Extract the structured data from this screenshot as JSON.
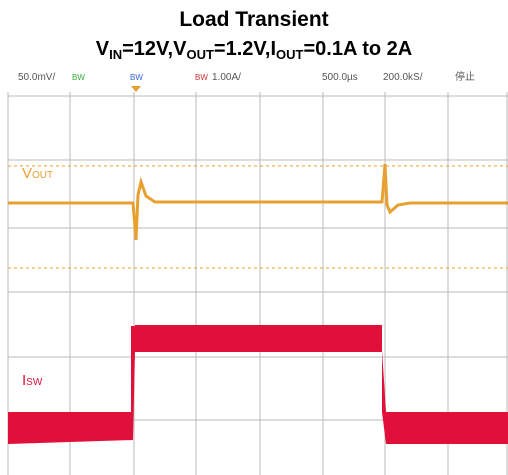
{
  "header": {
    "title": "Load Transient",
    "subtitle": [
      "V",
      "IN",
      "=12V,V",
      "OUT",
      "=1.2V,I",
      "OUT",
      "=0.1A to 2A"
    ]
  },
  "scope": {
    "readouts": [
      "50.0mV/",
      "BW",
      "BW",
      "BW",
      "1.00A/",
      "500.0µs",
      "200.0kS/",
      "停止"
    ],
    "traces": [
      {
        "name": "V",
        "sub": "OUT"
      },
      {
        "name": "I",
        "sub": "SW"
      }
    ]
  }
}
